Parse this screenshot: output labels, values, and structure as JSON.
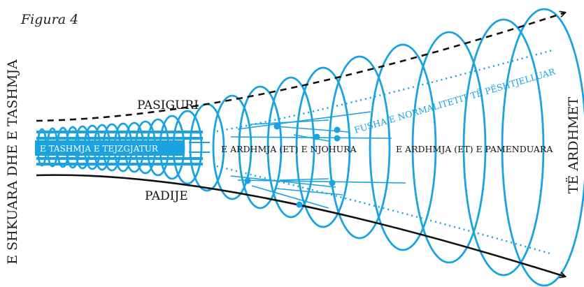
{
  "figure_label": "Figura 4",
  "left_axis_label": "E SHKUARA DHE E TASHMJA",
  "right_axis_label": "TË ARDHMET",
  "upper_curve_label": "PASIGURI",
  "lower_curve_label": "PADIJE",
  "past_box_label": "E TASHMJA E TEJZGJATUR",
  "known_future_label": "E ARDHMJA (ET) E NJOHURA",
  "unthought_future_label": "E ARDHMJA (ET) E PAMENDUARA",
  "normality_field_label": "FUSHA E NORMALITETIT TË PËSHTJELLUAR",
  "colors": {
    "accent": "#1aa3e0",
    "ink": "#111111"
  }
}
